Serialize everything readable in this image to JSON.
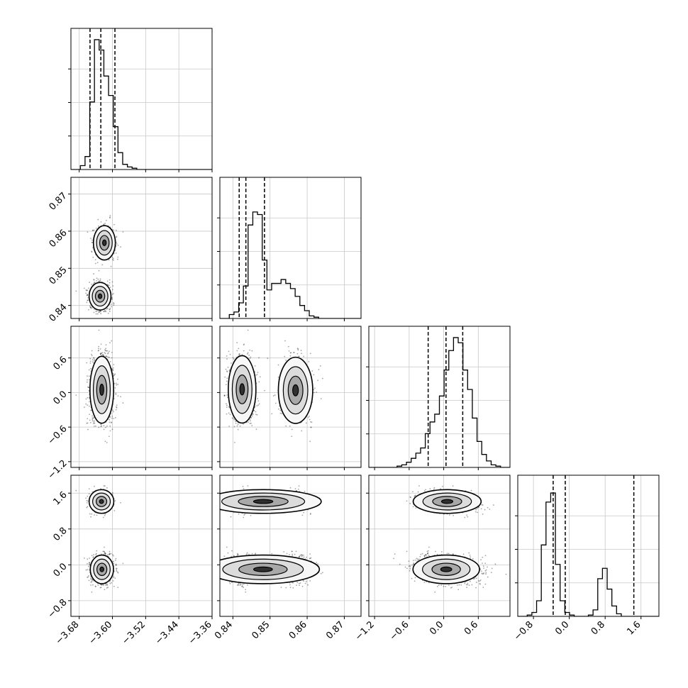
{
  "chart_data": {
    "type": "corner",
    "title": "",
    "parameters": [
      {
        "xlim": [
          -3.7,
          -3.36
        ],
        "xticks": [
          -3.68,
          -3.6,
          -3.52,
          -3.44,
          -3.36
        ],
        "xtick_labels": [
          "−3.68",
          "−3.60",
          "−3.52",
          "−3.44",
          "−3.36"
        ]
      },
      {
        "xlim": [
          0.8365,
          0.8745
        ],
        "xticks": [
          0.84,
          0.85,
          0.86,
          0.87
        ],
        "xtick_labels": [
          "0.84",
          "0.85",
          "0.86",
          "0.87"
        ],
        "ytick_labels": [
          "0.84",
          "0.85",
          "0.86",
          "0.87"
        ]
      },
      {
        "xlim": [
          -1.3,
          1.15
        ],
        "xticks": [
          -1.2,
          -0.6,
          0.0,
          0.6
        ],
        "xtick_labels": [
          "−1.2",
          "−0.6",
          "0.0",
          "0.6"
        ],
        "ytick_labels": [
          "−1.2",
          "−0.6",
          "0.0",
          "0.6"
        ]
      },
      {
        "xlim": [
          -1.15,
          2.0
        ],
        "xticks": [
          -0.8,
          0.0,
          0.8,
          1.6
        ],
        "xtick_labels": [
          "−0.8",
          "0.0",
          "0.8",
          "1.6"
        ],
        "ytick_labels": [
          "−0.8",
          "0.0",
          "0.8",
          "1.6"
        ]
      }
    ],
    "quantiles": [
      [
        -3.654,
        -3.628,
        -3.594
      ],
      [
        0.8417,
        0.8435,
        0.8485
      ],
      [
        -0.27,
        0.04,
        0.33
      ],
      [
        -0.36,
        -0.09,
        1.44
      ]
    ],
    "histograms": [
      [
        0,
        0,
        3,
        10,
        52,
        100,
        92,
        72,
        57,
        33,
        13,
        4,
        2,
        1,
        0,
        0,
        0,
        0,
        0,
        0,
        0,
        0,
        0,
        0,
        0,
        0,
        0,
        0,
        0,
        0
      ],
      [
        0,
        0,
        3,
        5,
        12,
        25,
        72,
        82,
        80,
        45,
        22,
        27,
        27,
        30,
        27,
        23,
        17,
        10,
        6,
        2,
        1,
        0,
        0,
        0,
        0,
        0,
        0,
        0,
        0,
        0
      ],
      [
        0,
        0,
        0,
        0,
        0,
        0,
        1,
        2,
        4,
        7,
        11,
        15,
        26,
        35,
        41,
        55,
        75,
        90,
        100,
        96,
        75,
        60,
        38,
        20,
        10,
        5,
        2,
        1,
        0,
        0
      ],
      [
        0,
        0,
        1,
        3,
        12,
        55,
        88,
        95,
        40,
        12,
        3,
        1,
        0,
        0,
        0,
        1,
        5,
        29,
        37,
        21,
        8,
        2,
        0,
        0,
        0,
        0,
        0,
        0,
        0,
        0
      ]
    ],
    "modes": [
      {
        "mean": [
          -3.63,
          0.8425
        ],
        "sd": [
          0.012,
          0.0018
        ],
        "w": 0.6
      },
      {
        "mean": [
          -3.62,
          0.857
        ],
        "sd": [
          0.012,
          0.0022
        ],
        "w": 0.4
      }
    ],
    "grid": true
  }
}
